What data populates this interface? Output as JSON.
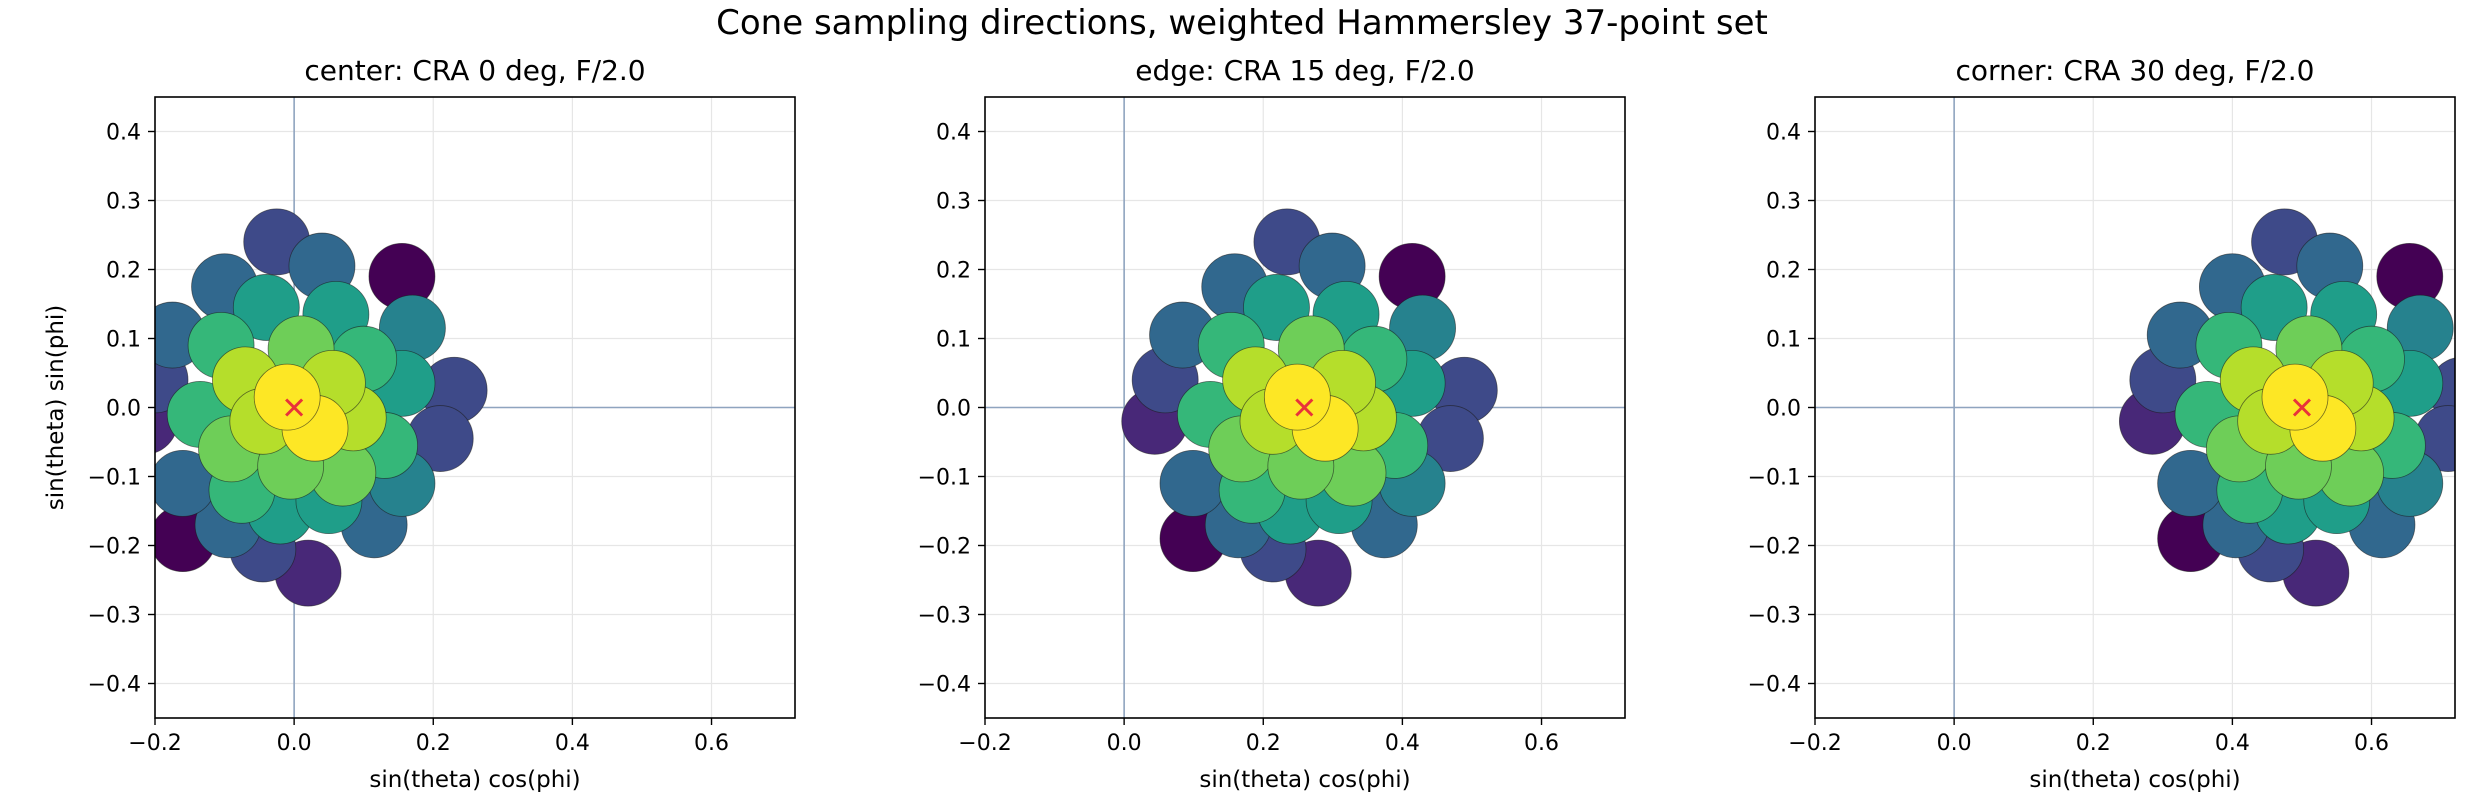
{
  "suptitle": "Cone sampling directions, weighted Hammersley 37-point set",
  "chart_data": [
    {
      "type": "scatter",
      "title": "center: CRA 0 deg, F/2.0",
      "xlabel": "sin(theta) cos(phi)",
      "ylabel": "sin(theta) sin(phi)",
      "xlim": [
        -0.2,
        0.72
      ],
      "ylim": [
        -0.45,
        0.45
      ],
      "xticks": [
        -0.2,
        0.0,
        0.2,
        0.4,
        0.6
      ],
      "yticks": [
        -0.4,
        -0.3,
        -0.2,
        -0.1,
        0.0,
        0.1,
        0.2,
        0.3,
        0.4
      ],
      "grid": true,
      "chief_ray": [
        0.0,
        0.0
      ]
    },
    {
      "type": "scatter",
      "title": "edge: CRA 15 deg, F/2.0",
      "xlabel": "sin(theta) cos(phi)",
      "ylabel": "",
      "xlim": [
        -0.2,
        0.72
      ],
      "ylim": [
        -0.45,
        0.45
      ],
      "xticks": [
        -0.2,
        0.0,
        0.2,
        0.4,
        0.6
      ],
      "yticks": [
        -0.4,
        -0.3,
        -0.2,
        -0.1,
        0.0,
        0.1,
        0.2,
        0.3,
        0.4
      ],
      "grid": true,
      "chief_ray": [
        0.259,
        0.0
      ]
    },
    {
      "type": "scatter",
      "title": "corner: CRA 30 deg, F/2.0",
      "xlabel": "sin(theta) cos(phi)",
      "ylabel": "",
      "xlim": [
        -0.2,
        0.72
      ],
      "ylim": [
        -0.45,
        0.45
      ],
      "xticks": [
        -0.2,
        0.0,
        0.2,
        0.4,
        0.6
      ],
      "yticks": [
        -0.4,
        -0.3,
        -0.2,
        -0.1,
        0.0,
        0.1,
        0.2,
        0.3,
        0.4
      ],
      "grid": true,
      "chief_ray": [
        0.5,
        0.0
      ]
    }
  ],
  "sample_offsets": [
    {
      "dx": -0.1,
      "dy": 0.175,
      "w": 0.38
    },
    {
      "dx": 0.04,
      "dy": 0.205,
      "w": 0.28
    },
    {
      "dx": -0.025,
      "dy": 0.24,
      "w": 0.18
    },
    {
      "dx": 0.155,
      "dy": 0.19,
      "w": 0.04
    },
    {
      "dx": -0.04,
      "dy": 0.145,
      "w": 0.58
    },
    {
      "dx": 0.06,
      "dy": 0.135,
      "w": 0.54
    },
    {
      "dx": 0.17,
      "dy": 0.115,
      "w": 0.42
    },
    {
      "dx": -0.175,
      "dy": 0.105,
      "w": 0.34
    },
    {
      "dx": -0.105,
      "dy": 0.09,
      "w": 0.62
    },
    {
      "dx": 0.01,
      "dy": 0.085,
      "w": 0.76
    },
    {
      "dx": 0.1,
      "dy": 0.07,
      "w": 0.72
    },
    {
      "dx": -0.2,
      "dy": 0.04,
      "w": 0.22
    },
    {
      "dx": -0.07,
      "dy": 0.04,
      "w": 0.86
    },
    {
      "dx": 0.055,
      "dy": 0.035,
      "w": 0.88
    },
    {
      "dx": 0.155,
      "dy": 0.035,
      "w": 0.56
    },
    {
      "dx": 0.23,
      "dy": 0.025,
      "w": 0.2
    },
    {
      "dx": -0.01,
      "dy": 0.015,
      "w": 0.97
    },
    {
      "dx": -0.135,
      "dy": -0.01,
      "w": 0.7
    },
    {
      "dx": -0.045,
      "dy": -0.02,
      "w": 0.92
    },
    {
      "dx": 0.085,
      "dy": -0.015,
      "w": 0.84
    },
    {
      "dx": -0.215,
      "dy": -0.02,
      "w": 0.1
    },
    {
      "dx": 0.03,
      "dy": -0.03,
      "w": 0.95
    },
    {
      "dx": -0.09,
      "dy": -0.06,
      "w": 0.8
    },
    {
      "dx": 0.13,
      "dy": -0.055,
      "w": 0.66
    },
    {
      "dx": 0.21,
      "dy": -0.045,
      "w": 0.24
    },
    {
      "dx": -0.005,
      "dy": -0.085,
      "w": 0.82
    },
    {
      "dx": 0.07,
      "dy": -0.095,
      "w": 0.78
    },
    {
      "dx": -0.16,
      "dy": -0.11,
      "w": 0.36
    },
    {
      "dx": -0.075,
      "dy": -0.12,
      "w": 0.64
    },
    {
      "dx": 0.155,
      "dy": -0.11,
      "w": 0.44
    },
    {
      "dx": 0.05,
      "dy": -0.135,
      "w": 0.6
    },
    {
      "dx": -0.02,
      "dy": -0.15,
      "w": 0.55
    },
    {
      "dx": -0.095,
      "dy": -0.17,
      "w": 0.3
    },
    {
      "dx": 0.115,
      "dy": -0.17,
      "w": 0.32
    },
    {
      "dx": -0.16,
      "dy": -0.19,
      "w": 0.03
    },
    {
      "dx": -0.045,
      "dy": -0.205,
      "w": 0.26
    },
    {
      "dx": 0.02,
      "dy": -0.24,
      "w": 0.12
    }
  ],
  "colors": {
    "viridis": [
      "#440154",
      "#482878",
      "#3e4a89",
      "#31688e",
      "#26828e",
      "#1f9e89",
      "#35b779",
      "#6ece58",
      "#b5de2b",
      "#fde725"
    ],
    "axis_line": "#8fa4bf",
    "grid": "#e6e6e6",
    "chief_marker": "#e8333a",
    "marker_edge": "#1a1a1a"
  }
}
